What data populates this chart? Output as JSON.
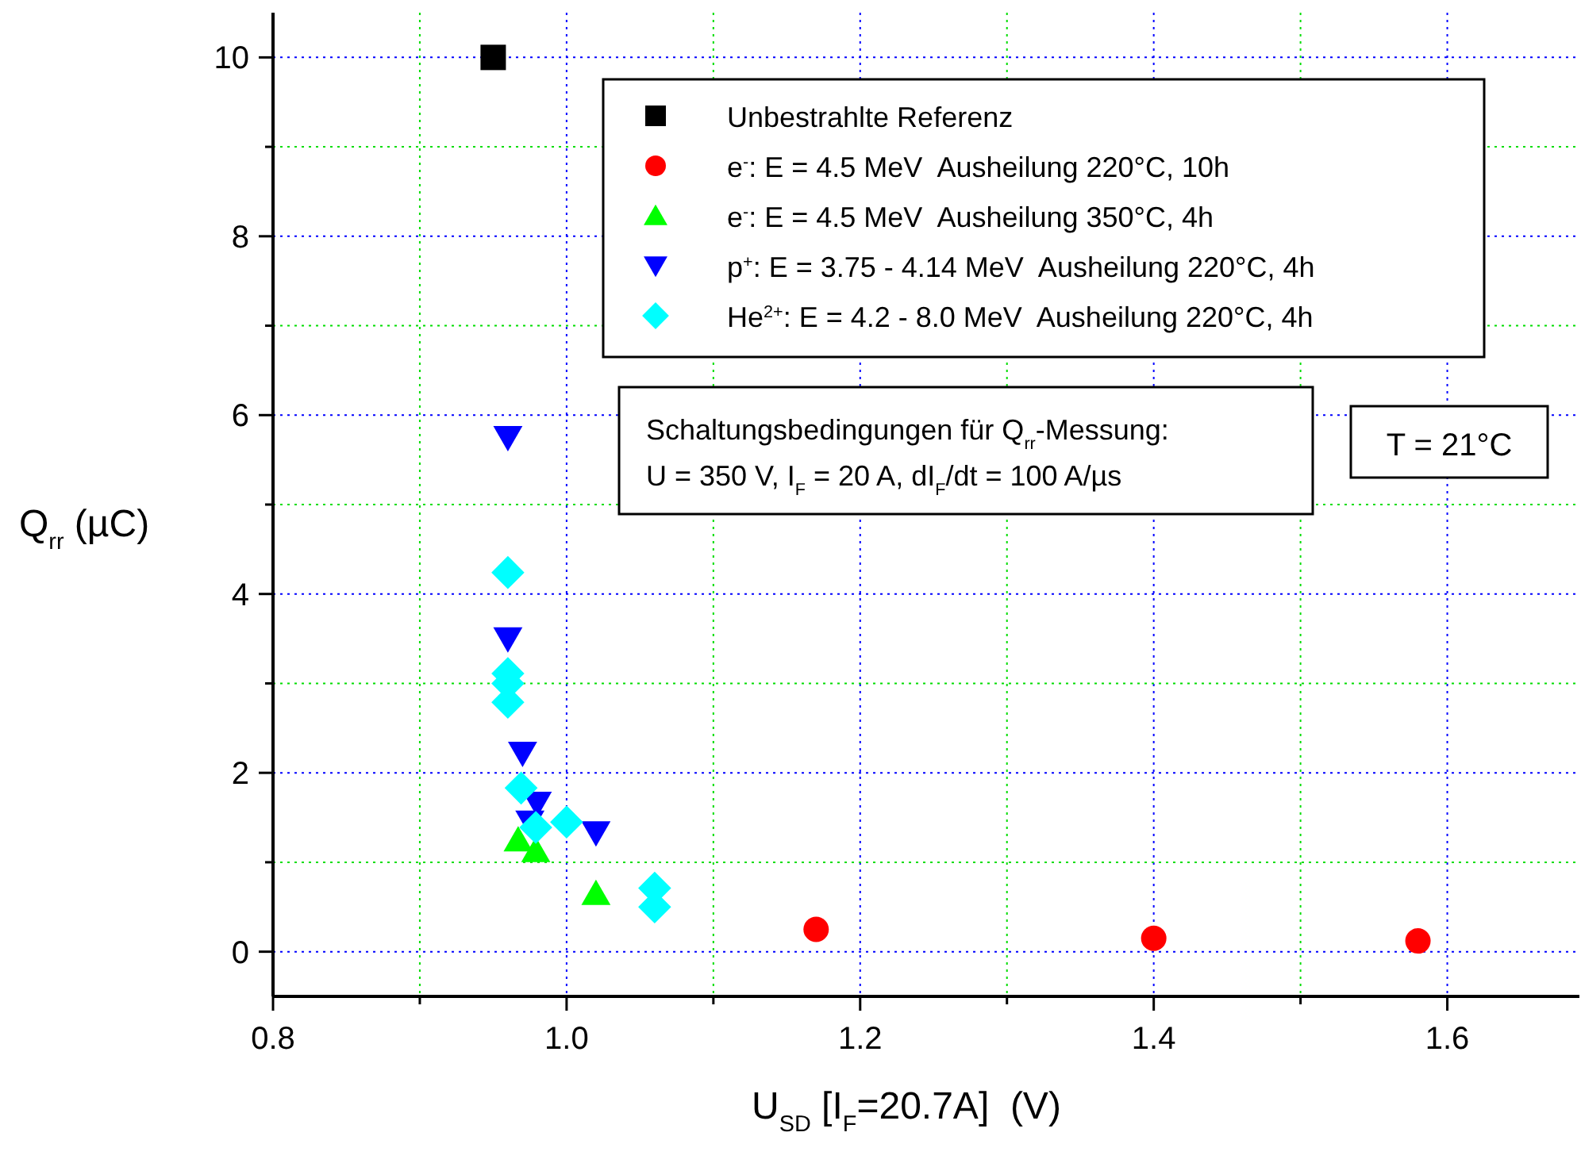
{
  "chart_data": {
    "type": "scatter",
    "xlabel": "U$_{SD}$ [I$_{F}$=20.7A]  (V)",
    "ylabel": "Q$_{rr}$ (µC)",
    "xlim": [
      0.8,
      1.69
    ],
    "ylim": [
      -0.5,
      10.5
    ],
    "xticks": [
      0.8,
      {
        "value": 0.9,
        "label": null
      },
      {
        "value": 1,
        "label": "1.0"
      },
      {
        "value": 1.1,
        "label": null
      },
      1.2,
      {
        "value": 1.3,
        "label": null
      },
      1.4,
      {
        "value": 1.5,
        "label": null
      },
      1.6
    ],
    "yticks": [
      0,
      {
        "value": 1,
        "label": null
      },
      2,
      {
        "value": 3,
        "label": null
      },
      4,
      {
        "value": 5,
        "label": null
      },
      6,
      {
        "value": 7,
        "label": null
      },
      8,
      {
        "value": 9,
        "label": null
      },
      10
    ],
    "grid": true,
    "legend": "top right",
    "annotations": [
      "Schaltungsbedingungen für Q$_{rr}$-Messung:\nU = 350 V, I$_{F}$ = 20 A, dI$_{F}$/dt = 100 A/µs",
      "T = 21°C"
    ],
    "series": [
      {
        "name": "Unbestrahlte Referenz",
        "color": "#000000",
        "marker": "square",
        "x": [
          0.95
        ],
        "values": [
          10
        ]
      },
      {
        "name": "e$^{-}$: E = 4.5 MeV  Ausheilung 220°C, 10h",
        "color": "#ff0000",
        "marker": "circle",
        "x": [
          1.17,
          1.4,
          1.58
        ],
        "values": [
          0.25,
          0.15,
          0.12
        ]
      },
      {
        "name": "e$^{-}$: E = 4.5 MeV  Ausheilung 350°C, 4h",
        "color": "#00ff00",
        "marker": "triangle",
        "x": [
          0.967,
          0.979,
          1.02
        ],
        "values": [
          1.25,
          1.13,
          0.65
        ]
      },
      {
        "name": "p$^{+}$: E = 3.75 - 4.14 MeV  Ausheilung 220°C, 4h",
        "color": "#0000ff",
        "marker": "triangle-down",
        "x": [
          0.96,
          0.96,
          0.97,
          0.98,
          0.975,
          1.02
        ],
        "values": [
          5.75,
          3.5,
          2.22,
          1.66,
          1.45,
          1.33
        ]
      },
      {
        "name": "He$^{2+}$: E = 4.2 - 8.0 MeV  Ausheilung 220°C, 4h",
        "color": "#00ffff",
        "marker": "diamond",
        "x": [
          0.96,
          0.96,
          0.96,
          0.96,
          0.969,
          0.979,
          1.0,
          1.06,
          1.06
        ],
        "values": [
          4.24,
          3.11,
          3.0,
          2.79,
          1.83,
          1.39,
          1.45,
          0.71,
          0.5
        ]
      }
    ]
  }
}
